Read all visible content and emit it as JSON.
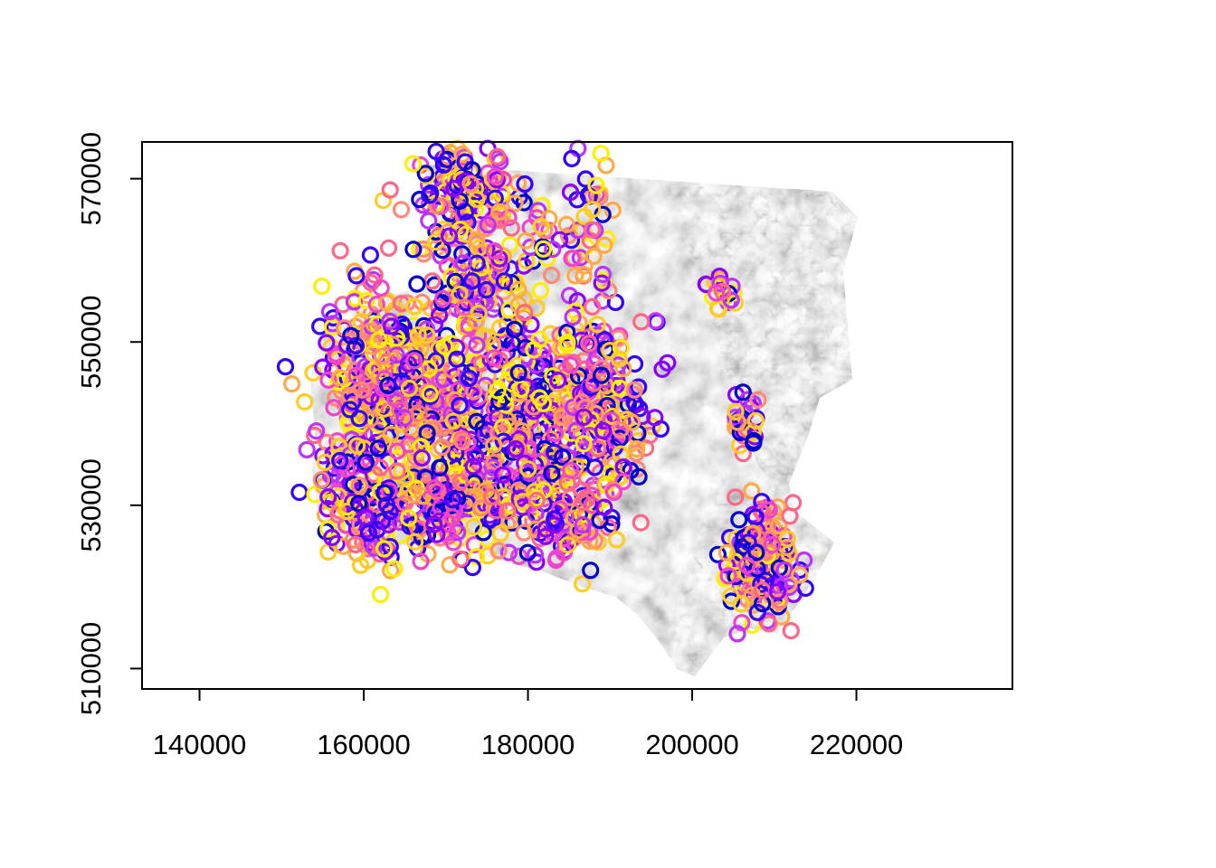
{
  "chart_data": {
    "type": "scatter",
    "title": "",
    "xlabel": "",
    "ylabel": "",
    "xlim": [
      133000,
      239000
    ],
    "ylim": [
      507500,
      574500
    ],
    "x_ticks": [
      140000,
      160000,
      180000,
      200000,
      220000
    ],
    "y_ticks": [
      510000,
      530000,
      550000,
      570000
    ],
    "x_tick_labels": [
      "140000",
      "160000",
      "180000",
      "200000",
      "220000"
    ],
    "y_tick_labels": [
      "510000",
      "530000",
      "550000",
      "570000"
    ],
    "grid": false,
    "legend": "none",
    "background_raster": "grayscale hillshade relief",
    "marker": "open-circle",
    "palette": [
      "#0000cc",
      "#3300ff",
      "#8800ff",
      "#bb33ff",
      "#ee44cc",
      "#ff6688",
      "#ff8877",
      "#ffaa44",
      "#ffcc22",
      "#ffee00"
    ],
    "clusters": [
      {
        "cx": 172500,
        "cy": 568500,
        "sx": 3000,
        "sy": 2500,
        "n": 160
      },
      {
        "cx": 174000,
        "cy": 557000,
        "sx": 3200,
        "sy": 3000,
        "n": 130
      },
      {
        "cx": 160500,
        "cy": 546000,
        "sx": 3000,
        "sy": 6000,
        "n": 230
      },
      {
        "cx": 168000,
        "cy": 543000,
        "sx": 4000,
        "sy": 6000,
        "n": 250
      },
      {
        "cx": 181000,
        "cy": 541000,
        "sx": 4500,
        "sy": 6500,
        "n": 330
      },
      {
        "cx": 189500,
        "cy": 543000,
        "sx": 2500,
        "sy": 5000,
        "n": 150
      },
      {
        "cx": 160500,
        "cy": 530500,
        "sx": 3000,
        "sy": 3500,
        "n": 160
      },
      {
        "cx": 171000,
        "cy": 530000,
        "sx": 4000,
        "sy": 3500,
        "n": 170
      },
      {
        "cx": 184500,
        "cy": 529500,
        "sx": 3500,
        "sy": 3500,
        "n": 120
      },
      {
        "cx": 187000,
        "cy": 565000,
        "sx": 1500,
        "sy": 4500,
        "n": 40
      },
      {
        "cx": 182000,
        "cy": 562500,
        "sx": 1200,
        "sy": 2500,
        "n": 18
      },
      {
        "cx": 208500,
        "cy": 523000,
        "sx": 2200,
        "sy": 3500,
        "n": 190
      },
      {
        "cx": 206500,
        "cy": 540500,
        "sx": 1400,
        "sy": 1500,
        "n": 28
      },
      {
        "cx": 203500,
        "cy": 556500,
        "sx": 1400,
        "sy": 1200,
        "n": 20
      }
    ]
  }
}
